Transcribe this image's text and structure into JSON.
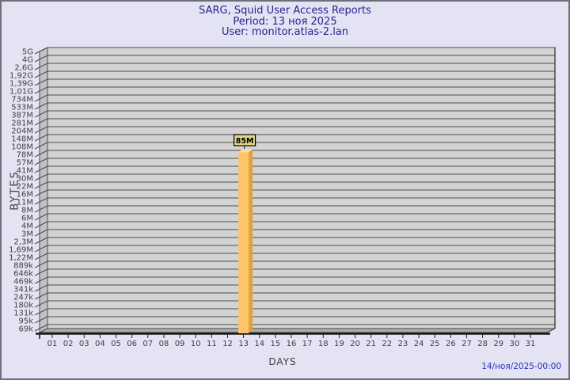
{
  "window": {
    "background": "#e3e3f4",
    "border_color": "#6f6f7a"
  },
  "header": {
    "title": "SARG, Squid User Access Reports",
    "period_line": "Period: 13 ноя 2025",
    "user_line": "User: monitor.atlas-2.lan"
  },
  "footer": {
    "timestamp": "14/ноя/2025-00:00"
  },
  "chart_data": {
    "type": "bar",
    "title": "SARG, Squid User Access Reports",
    "subtitle": "Period: 13 ноя 2025",
    "user_line": "User: monitor.atlas-2.lan",
    "xlabel": "DAYS",
    "ylabel": "BYTES",
    "y_axis_type": "log",
    "grid": true,
    "legend_position": "none",
    "y_tick_labels": [
      "5G",
      "4G",
      "2,6G",
      "1,92G",
      "1,39G",
      "1,01G",
      "734M",
      "533M",
      "387M",
      "281M",
      "204M",
      "148M",
      "108M",
      "78M",
      "57M",
      "41M",
      "30M",
      "22M",
      "16M",
      "11M",
      "8M",
      "6M",
      "4M",
      "3M",
      "2,3M",
      "1,69M",
      "1,22M",
      "889k",
      "646k",
      "469k",
      "341k",
      "247k",
      "180k",
      "131k",
      "95k",
      "69k"
    ],
    "x_tick_labels": [
      "01",
      "02",
      "03",
      "04",
      "05",
      "06",
      "07",
      "08",
      "09",
      "10",
      "11",
      "12",
      "13",
      "14",
      "15",
      "16",
      "17",
      "18",
      "19",
      "20",
      "21",
      "22",
      "23",
      "24",
      "25",
      "26",
      "27",
      "28",
      "29",
      "30",
      "31"
    ],
    "bars": [
      {
        "day": "13",
        "value_label": "85M",
        "value_bytes": 85000000
      }
    ],
    "colors": {
      "title_text": "#24248e",
      "timestamp_text": "#2d2dc0",
      "page_bg": "#e3e3f4",
      "plot_bg": "#d3d3d3",
      "grid_line": "#4d4d4d",
      "wall_fill": "#c2c2c2",
      "floor_fill": "#adadad",
      "axis_line": "#1a1a1a",
      "axis_text": "#3f3f3f",
      "bar_front": "#fdc46a",
      "bar_side": "#dfa23c",
      "bar_top": "#ffdc96",
      "value_box_bg": "#dcd687",
      "value_box_border": "#000000"
    }
  }
}
